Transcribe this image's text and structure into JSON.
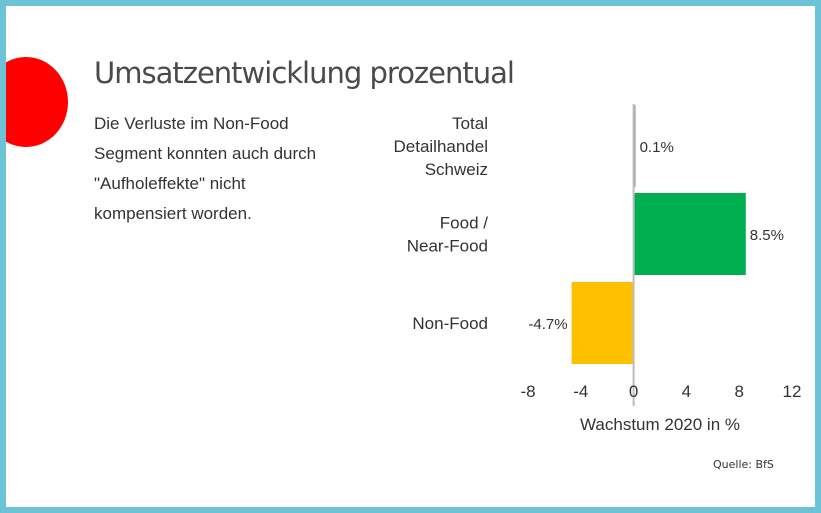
{
  "title": "Umsatzentwicklung prozentual",
  "description": {
    "lines": [
      "Die Verluste im Non-Food",
      "Segment konnten auch durch",
      "\"Aufholeffekte\" nicht",
      "kompensiert worden."
    ]
  },
  "source": "Quelle: BfS",
  "colors": {
    "frame": "#6cc3d5",
    "accent_dot": "#ff0000",
    "total": "#9e9e9e",
    "food": "#00b050",
    "nonfood": "#ffc000"
  },
  "chart_data": {
    "type": "bar",
    "orientation": "horizontal",
    "categories": [
      [
        "Total",
        "Detailhandel",
        "Schweiz"
      ],
      [
        "Food /",
        "Near-Food"
      ],
      [
        "Non-Food"
      ]
    ],
    "values": [
      0.1,
      8.5,
      -4.7
    ],
    "value_labels": [
      "0.1%",
      "8.5%",
      "-4.7%"
    ],
    "bar_colors": [
      "#9e9e9e",
      "#00b050",
      "#ffc000"
    ],
    "xlabel": "Wachstum 2020 in %",
    "xlim": [
      -8,
      12
    ],
    "xticks": [
      -8,
      -4,
      0,
      4,
      8,
      12
    ],
    "tick_labels": [
      "-8",
      "-4",
      "0",
      "4",
      "8",
      "12"
    ],
    "grid": false,
    "legend": "none"
  }
}
